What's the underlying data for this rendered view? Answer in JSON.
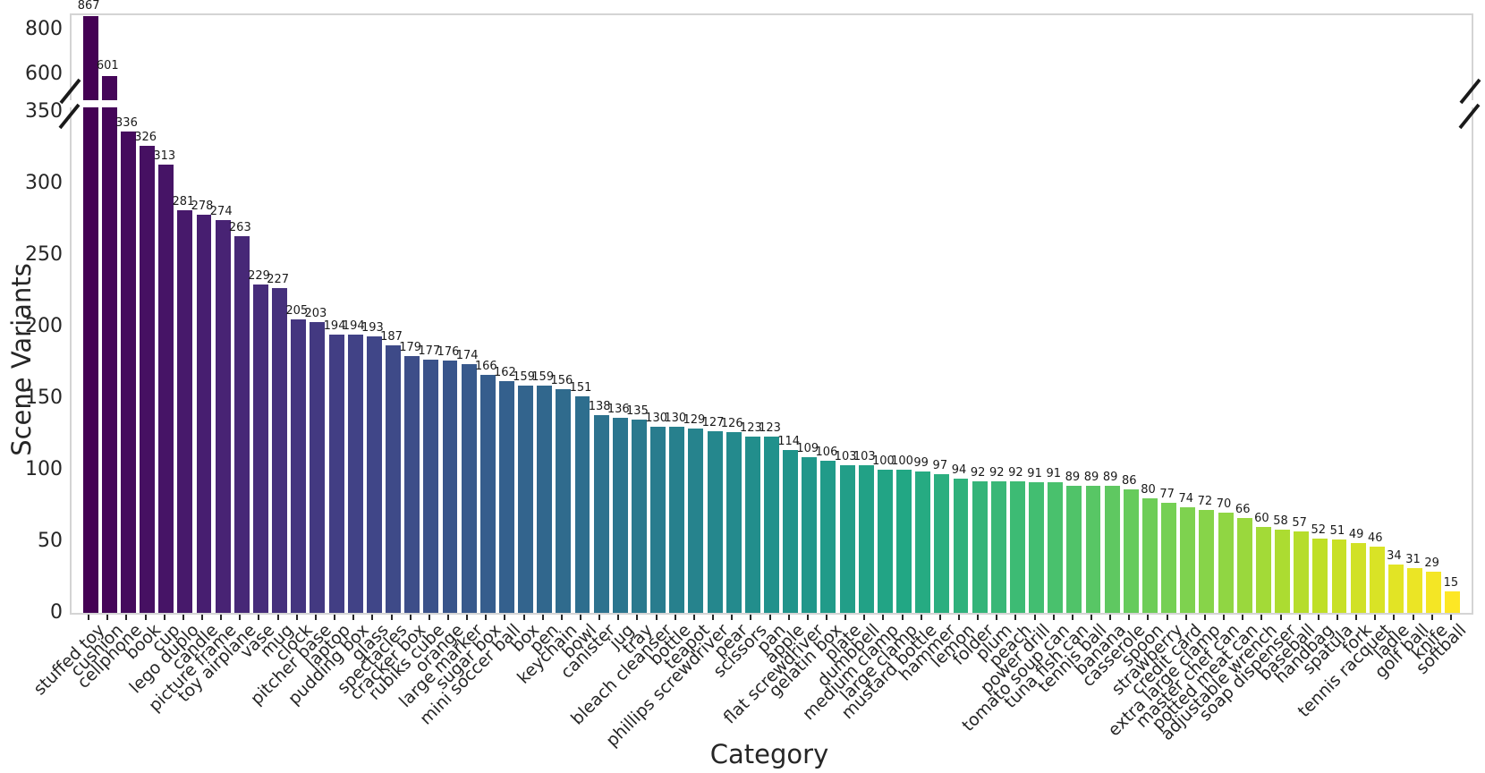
{
  "chart_data": {
    "type": "bar",
    "title": "",
    "xlabel": "Category",
    "ylabel": "Scene Variants",
    "bar_value_labels": true,
    "grid": false,
    "colormap": "viridis",
    "colormap_stops": [
      "#440154",
      "#482475",
      "#414487",
      "#355f8d",
      "#2a788e",
      "#21918c",
      "#22a884",
      "#44bf70",
      "#7ad151",
      "#bddf26",
      "#fde725"
    ],
    "broken_axis": {
      "lower_ticks": [
        0,
        50,
        100,
        150,
        200,
        250,
        300,
        350
      ],
      "upper_ticks": [
        600,
        800
      ],
      "lower_range": [
        0,
        353
      ],
      "upper_range": [
        492,
        872
      ]
    },
    "categories": [
      "stuffed toy",
      "cushion",
      "cellphone",
      "book",
      "cup",
      "lego duplo",
      "candle",
      "picture frame",
      "toy airplane",
      "vase",
      "mug",
      "clock",
      "pitcher base",
      "laptop",
      "pudding box",
      "glass",
      "spectacles",
      "cracker box",
      "rubiks cube",
      "orange",
      "large marker",
      "sugar box",
      "mini soccer ball",
      "box",
      "pen",
      "keychain",
      "bowl",
      "canister",
      "jug",
      "tray",
      "bleach cleanser",
      "bottle",
      "teapot",
      "phillips screwdriver",
      "pear",
      "scissors",
      "pan",
      "apple",
      "flat screwdriver",
      "gelatin box",
      "plate",
      "dumbbell",
      "medium clamp",
      "large clamp",
      "mustard bottle",
      "hammer",
      "lemon",
      "folder",
      "plum",
      "peach",
      "power drill",
      "tomato soup can",
      "tuna fish can",
      "tennis ball",
      "banana",
      "casserole",
      "spoon",
      "strawberry",
      "credit card",
      "extra large clamp",
      "master chef can",
      "potted meat can",
      "adjustable wrench",
      "soap dispenser",
      "baseball",
      "handbag",
      "spatula",
      "fork",
      "tennis racquet",
      "ladle",
      "golf ball",
      "knife",
      "softball"
    ],
    "values": [
      867,
      601,
      336,
      326,
      313,
      281,
      278,
      274,
      263,
      229,
      227,
      205,
      203,
      194,
      194,
      193,
      187,
      179,
      177,
      176,
      174,
      166,
      162,
      159,
      159,
      156,
      151,
      138,
      136,
      135,
      130,
      130,
      129,
      127,
      126,
      123,
      123,
      114,
      109,
      106,
      103,
      103,
      100,
      100,
      99,
      97,
      94,
      92,
      92,
      92,
      91,
      91,
      89,
      89,
      89,
      86,
      80,
      77,
      74,
      72,
      70,
      66,
      60,
      58,
      57,
      52,
      51,
      49,
      46,
      34,
      31,
      29,
      15
    ]
  }
}
